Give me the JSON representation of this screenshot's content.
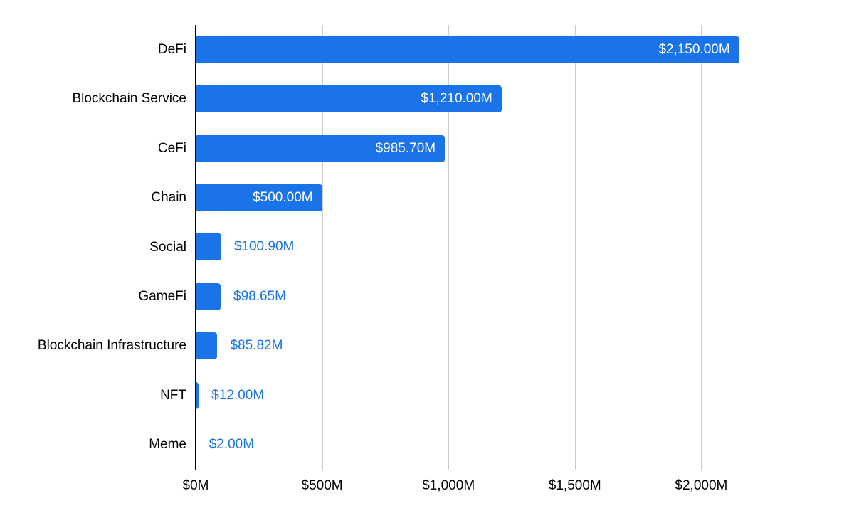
{
  "chart_data": {
    "type": "bar",
    "orientation": "horizontal",
    "categories": [
      "DeFi",
      "Blockchain Service",
      "CeFi",
      "Chain",
      "Social",
      "GameFi",
      "Blockchain Infrastructure",
      "NFT",
      "Meme"
    ],
    "values": [
      2150,
      1210,
      985.7,
      500,
      100.9,
      98.65,
      85.82,
      12,
      2
    ],
    "value_labels": [
      "$2,150.00M",
      "$1,210.00M",
      "$985.70M",
      "$500.00M",
      "$100.90M",
      "$98.65M",
      "$85.82M",
      "$12.00M",
      "$2.00M"
    ],
    "x_ticks": [
      {
        "value": 0,
        "label": "$0M"
      },
      {
        "value": 500,
        "label": "$500M"
      },
      {
        "value": 1000,
        "label": "$1,000M"
      },
      {
        "value": 1500,
        "label": "$1,500M"
      },
      {
        "value": 2000,
        "label": "$2,000M"
      }
    ],
    "gridline_values": [
      0,
      500,
      1000,
      1500,
      2000,
      2500
    ],
    "xlim": [
      0,
      2500
    ],
    "inside_label_threshold": 500,
    "grid": "vertical",
    "legend": "none",
    "colors": {
      "bar": "#1a73e8",
      "inside_label": "#ffffff",
      "outside_label": "#1a73e8",
      "gridline": "#cccccc",
      "axis": "#000000",
      "text": "#000000",
      "background": "#ffffff"
    }
  }
}
